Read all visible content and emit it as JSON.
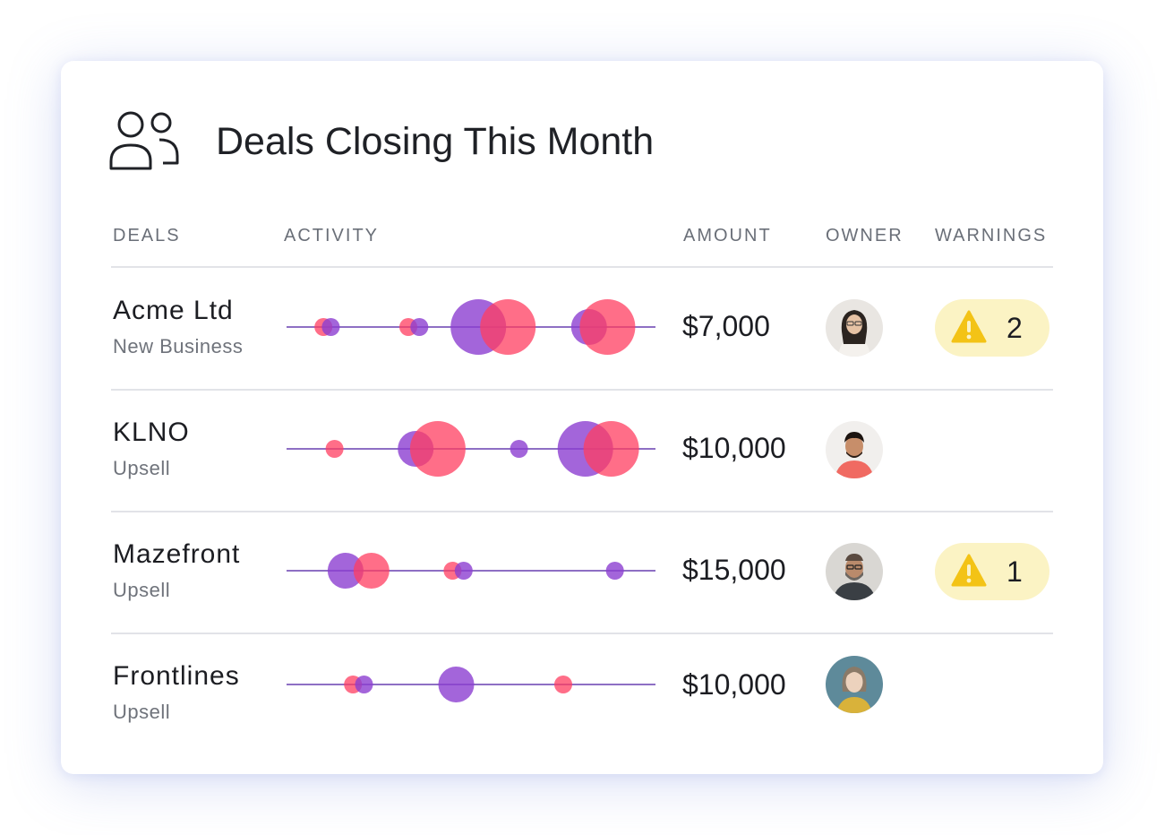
{
  "title": "Deals Closing This Month",
  "header_icon": "users-icon",
  "columns": {
    "deals": "DEALS",
    "activity": "ACTIVITY",
    "amount": "AMOUNT",
    "owner": "OWNER",
    "warnings": "WARNINGS"
  },
  "colors": {
    "purple": "#8c3fd1",
    "pink": "#ff3d60",
    "line": "#8e6fc4",
    "warning_bg": "#fbf3c4",
    "warning_icon": "#f3c316"
  },
  "deals": [
    {
      "name": "Acme Ltd",
      "type": "New Business",
      "amount": "$7,000",
      "owner_avatar": "avatar-woman-glasses",
      "warnings": "2",
      "activity": [
        {
          "pos": 0.1,
          "size": 1,
          "color": "pink"
        },
        {
          "pos": 0.12,
          "size": 1,
          "color": "purple"
        },
        {
          "pos": 0.33,
          "size": 1,
          "color": "pink"
        },
        {
          "pos": 0.36,
          "size": 1,
          "color": "purple"
        },
        {
          "pos": 0.52,
          "size": 3,
          "color": "purple"
        },
        {
          "pos": 0.6,
          "size": 3,
          "color": "pink"
        },
        {
          "pos": 0.82,
          "size": 2,
          "color": "purple"
        },
        {
          "pos": 0.87,
          "size": 3,
          "color": "pink"
        }
      ]
    },
    {
      "name": "KLNO",
      "type": "Upsell",
      "amount": "$10,000",
      "owner_avatar": "avatar-man-beard",
      "warnings": "",
      "activity": [
        {
          "pos": 0.13,
          "size": 1,
          "color": "pink"
        },
        {
          "pos": 0.35,
          "size": 2,
          "color": "purple"
        },
        {
          "pos": 0.41,
          "size": 3,
          "color": "pink"
        },
        {
          "pos": 0.63,
          "size": 1,
          "color": "purple"
        },
        {
          "pos": 0.81,
          "size": 3,
          "color": "purple"
        },
        {
          "pos": 0.88,
          "size": 3,
          "color": "pink"
        }
      ]
    },
    {
      "name": "Mazefront",
      "type": "Upsell",
      "amount": "$15,000",
      "owner_avatar": "avatar-man-glasses",
      "warnings": "1",
      "activity": [
        {
          "pos": 0.16,
          "size": 2,
          "color": "purple"
        },
        {
          "pos": 0.23,
          "size": 2,
          "color": "pink"
        },
        {
          "pos": 0.45,
          "size": 1,
          "color": "pink"
        },
        {
          "pos": 0.48,
          "size": 1,
          "color": "purple"
        },
        {
          "pos": 0.89,
          "size": 1,
          "color": "purple"
        }
      ]
    },
    {
      "name": "Frontlines",
      "type": "Upsell",
      "amount": "$10,000",
      "owner_avatar": "avatar-woman-blonde",
      "warnings": "",
      "activity": [
        {
          "pos": 0.18,
          "size": 1,
          "color": "pink"
        },
        {
          "pos": 0.21,
          "size": 1,
          "color": "purple"
        },
        {
          "pos": 0.46,
          "size": 2,
          "color": "purple"
        },
        {
          "pos": 0.75,
          "size": 1,
          "color": "pink"
        }
      ]
    }
  ]
}
